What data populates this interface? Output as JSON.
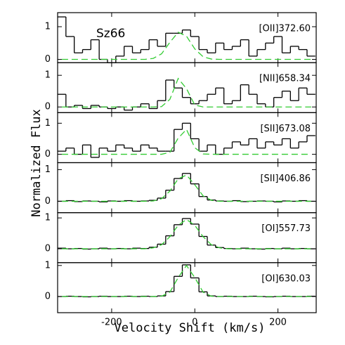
{
  "axes": {
    "xlabel": "Velocity Shift (km/s)",
    "ylabel": "Normalized Flux"
  },
  "chart_data": [
    {
      "type": "line",
      "object": "Sz66",
      "annotation": "[OII]372.60",
      "x": [
        -320,
        -300,
        -280,
        -260,
        -240,
        -220,
        -200,
        -180,
        -160,
        -140,
        -120,
        -100,
        -80,
        -60,
        -40,
        -20,
        0,
        20,
        40,
        60,
        80,
        100,
        120,
        140,
        160,
        180,
        200,
        220,
        240,
        260,
        280
      ],
      "series": [
        {
          "style": "step",
          "color": "#000000",
          "values": [
            1.3,
            0.7,
            0.2,
            0.3,
            0.6,
            0.0,
            -0.1,
            0.1,
            0.4,
            0.2,
            0.3,
            0.6,
            0.4,
            0.8,
            0.8,
            0.9,
            0.7,
            0.3,
            0.2,
            0.5,
            0.3,
            0.4,
            0.6,
            0.1,
            0.3,
            0.5,
            0.7,
            0.2,
            0.4,
            0.3,
            0.1
          ]
        },
        {
          "style": "dashed",
          "color": "#33cc33",
          "values": [
            0,
            0,
            0,
            0,
            0,
            0,
            0,
            0,
            0,
            0,
            0,
            0.03,
            0.17,
            0.52,
            0.83,
            0.71,
            0.32,
            0.08,
            0.01,
            0,
            0,
            0,
            0,
            0,
            0,
            0,
            0,
            0,
            0,
            0,
            0
          ]
        }
      ],
      "xlim": [
        -330,
        292
      ],
      "ylim": [
        -0.1,
        1.43
      ],
      "xticks": [
        -200,
        0,
        200
      ],
      "yticks": [
        0,
        1
      ]
    },
    {
      "type": "line",
      "annotation": "[NII]658.34",
      "x": [
        -320,
        -300,
        -280,
        -260,
        -240,
        -220,
        -200,
        -180,
        -160,
        -140,
        -120,
        -100,
        -80,
        -60,
        -40,
        -20,
        0,
        20,
        40,
        60,
        80,
        100,
        120,
        140,
        160,
        180,
        200,
        220,
        240,
        260,
        280
      ],
      "series": [
        {
          "style": "step",
          "color": "#000000",
          "values": [
            0.4,
            0.0,
            0.05,
            -0.05,
            0.05,
            0.0,
            -0.05,
            0.0,
            -0.1,
            0.0,
            0.1,
            -0.05,
            0.2,
            0.85,
            0.6,
            0.3,
            0.1,
            0.2,
            0.4,
            0.6,
            0.1,
            0.2,
            0.7,
            0.4,
            0.1,
            0.0,
            0.3,
            0.5,
            0.2,
            0.6,
            0.4
          ]
        },
        {
          "style": "dashed",
          "color": "#33cc33",
          "values": [
            0,
            0,
            0,
            0,
            0,
            0,
            0,
            0,
            0,
            0,
            0,
            0,
            0.01,
            0.24,
            0.9,
            0.58,
            0.06,
            0,
            0,
            0,
            0,
            0,
            0,
            0,
            0,
            0,
            0,
            0,
            0,
            0,
            0
          ]
        }
      ],
      "xlim": [
        -330,
        292
      ],
      "ylim": [
        -0.18,
        1.4
      ],
      "xticks": [
        -200,
        0,
        200
      ],
      "yticks": [
        0,
        1
      ]
    },
    {
      "type": "line",
      "annotation": "[SII]673.08",
      "x": [
        -320,
        -300,
        -280,
        -260,
        -240,
        -220,
        -200,
        -180,
        -160,
        -140,
        -120,
        -100,
        -80,
        -60,
        -40,
        -20,
        0,
        20,
        40,
        60,
        80,
        100,
        120,
        140,
        160,
        180,
        200,
        220,
        240,
        260,
        280
      ],
      "series": [
        {
          "style": "step",
          "color": "#000000",
          "values": [
            0.1,
            0.2,
            0.0,
            0.3,
            -0.1,
            0.2,
            0.1,
            0.3,
            0.2,
            0.1,
            0.3,
            0.2,
            0.1,
            0.1,
            0.8,
            1.0,
            0.5,
            0.1,
            0.3,
            0.0,
            0.2,
            0.4,
            0.3,
            0.5,
            0.2,
            0.4,
            0.3,
            0.5,
            0.2,
            0.4,
            0.6
          ]
        },
        {
          "style": "dashed",
          "color": "#33cc33",
          "values": [
            0,
            0,
            0,
            0,
            0,
            0,
            0,
            0,
            0,
            0,
            0,
            0,
            0,
            0.06,
            0.52,
            0.8,
            0.21,
            0.01,
            0,
            0,
            0,
            0,
            0,
            0,
            0,
            0,
            0,
            0,
            0,
            0,
            0
          ]
        }
      ],
      "xlim": [
        -330,
        292
      ],
      "ylim": [
        -0.27,
        1.34
      ],
      "xticks": [
        -200,
        0,
        200
      ],
      "yticks": [
        0,
        1
      ]
    },
    {
      "type": "line",
      "annotation": "[SII]406.86",
      "x": [
        -320,
        -300,
        -280,
        -260,
        -240,
        -220,
        -200,
        -180,
        -160,
        -140,
        -120,
        -100,
        -80,
        -60,
        -40,
        -20,
        0,
        20,
        40,
        60,
        80,
        100,
        120,
        140,
        160,
        180,
        200,
        220,
        240,
        260,
        280
      ],
      "series": [
        {
          "style": "step",
          "color": "#000000",
          "values": [
            0,
            0.02,
            -0.01,
            0.01,
            0,
            -0.02,
            0.01,
            0,
            0.02,
            0,
            0.01,
            0.03,
            0.1,
            0.35,
            0.72,
            0.88,
            0.55,
            0.15,
            0.04,
            0.01,
            0,
            0.02,
            -0.01,
            0,
            0.01,
            0,
            -0.02,
            0.01,
            0,
            0.02,
            0
          ]
        },
        {
          "style": "dashed",
          "color": "#33cc33",
          "values": [
            0,
            0,
            0,
            0,
            0,
            0,
            0,
            0,
            0,
            0,
            0,
            0.01,
            0.08,
            0.32,
            0.71,
            0.83,
            0.52,
            0.17,
            0.03,
            0,
            0,
            0,
            0,
            0,
            0,
            0,
            0,
            0,
            0,
            0,
            0
          ]
        }
      ],
      "xlim": [
        -330,
        292
      ],
      "ylim": [
        -0.36,
        1.22
      ],
      "xticks": [
        -200,
        0,
        200
      ],
      "yticks": [
        0,
        1
      ]
    },
    {
      "type": "line",
      "annotation": "[OI]557.73",
      "x": [
        -320,
        -300,
        -280,
        -260,
        -240,
        -220,
        -200,
        -180,
        -160,
        -140,
        -120,
        -100,
        -80,
        -60,
        -40,
        -20,
        0,
        20,
        40,
        60,
        80,
        100,
        120,
        140,
        160,
        180,
        200,
        220,
        240,
        260,
        280
      ],
      "series": [
        {
          "style": "step",
          "color": "#000000",
          "values": [
            0.02,
            0,
            0.01,
            -0.01,
            0,
            0.02,
            0,
            0.01,
            0,
            0.02,
            0.01,
            0.05,
            0.15,
            0.42,
            0.78,
            0.98,
            0.8,
            0.4,
            0.12,
            0.04,
            0.01,
            0,
            0.02,
            0,
            -0.01,
            0.01,
            0,
            0.02,
            0,
            0.01,
            0
          ]
        },
        {
          "style": "dashed",
          "color": "#33cc33",
          "values": [
            0,
            0,
            0,
            0,
            0,
            0,
            0,
            0,
            0,
            0,
            0,
            0.03,
            0.13,
            0.39,
            0.76,
            0.95,
            0.76,
            0.39,
            0.13,
            0.03,
            0,
            0,
            0,
            0,
            0,
            0,
            0,
            0,
            0,
            0,
            0
          ]
        }
      ],
      "xlim": [
        -330,
        292
      ],
      "ylim": [
        -0.45,
        1.17
      ],
      "xticks": [
        -200,
        0,
        200
      ],
      "yticks": [
        0,
        1
      ]
    },
    {
      "type": "line",
      "annotation": "[OI]630.03",
      "x": [
        -320,
        -300,
        -280,
        -260,
        -240,
        -220,
        -200,
        -180,
        -160,
        -140,
        -120,
        -100,
        -80,
        -60,
        -40,
        -20,
        0,
        20,
        40,
        60,
        80,
        100,
        120,
        140,
        160,
        180,
        200,
        220,
        240,
        260,
        280
      ],
      "series": [
        {
          "style": "step",
          "color": "#000000",
          "values": [
            0,
            0.01,
            0,
            -0.01,
            0,
            0.01,
            0,
            0,
            0.01,
            0,
            0.01,
            0,
            0.02,
            0.16,
            0.65,
            1.02,
            0.6,
            0.15,
            0.02,
            0,
            0.01,
            0,
            0,
            0.01,
            0,
            -0.01,
            0,
            0.01,
            0,
            0,
            0.01
          ]
        },
        {
          "style": "dashed",
          "color": "#33cc33",
          "values": [
            0,
            0,
            0,
            0,
            0,
            0,
            0,
            0,
            0,
            0,
            0,
            0,
            0.01,
            0.14,
            0.61,
            1.0,
            0.61,
            0.14,
            0.01,
            0,
            0,
            0,
            0,
            0,
            0,
            0,
            0,
            0,
            0,
            0,
            0
          ]
        }
      ],
      "xlim": [
        -330,
        292
      ],
      "ylim": [
        -0.52,
        1.09
      ],
      "xticks": [
        -200,
        0,
        200
      ],
      "yticks": [
        0,
        1
      ]
    }
  ]
}
